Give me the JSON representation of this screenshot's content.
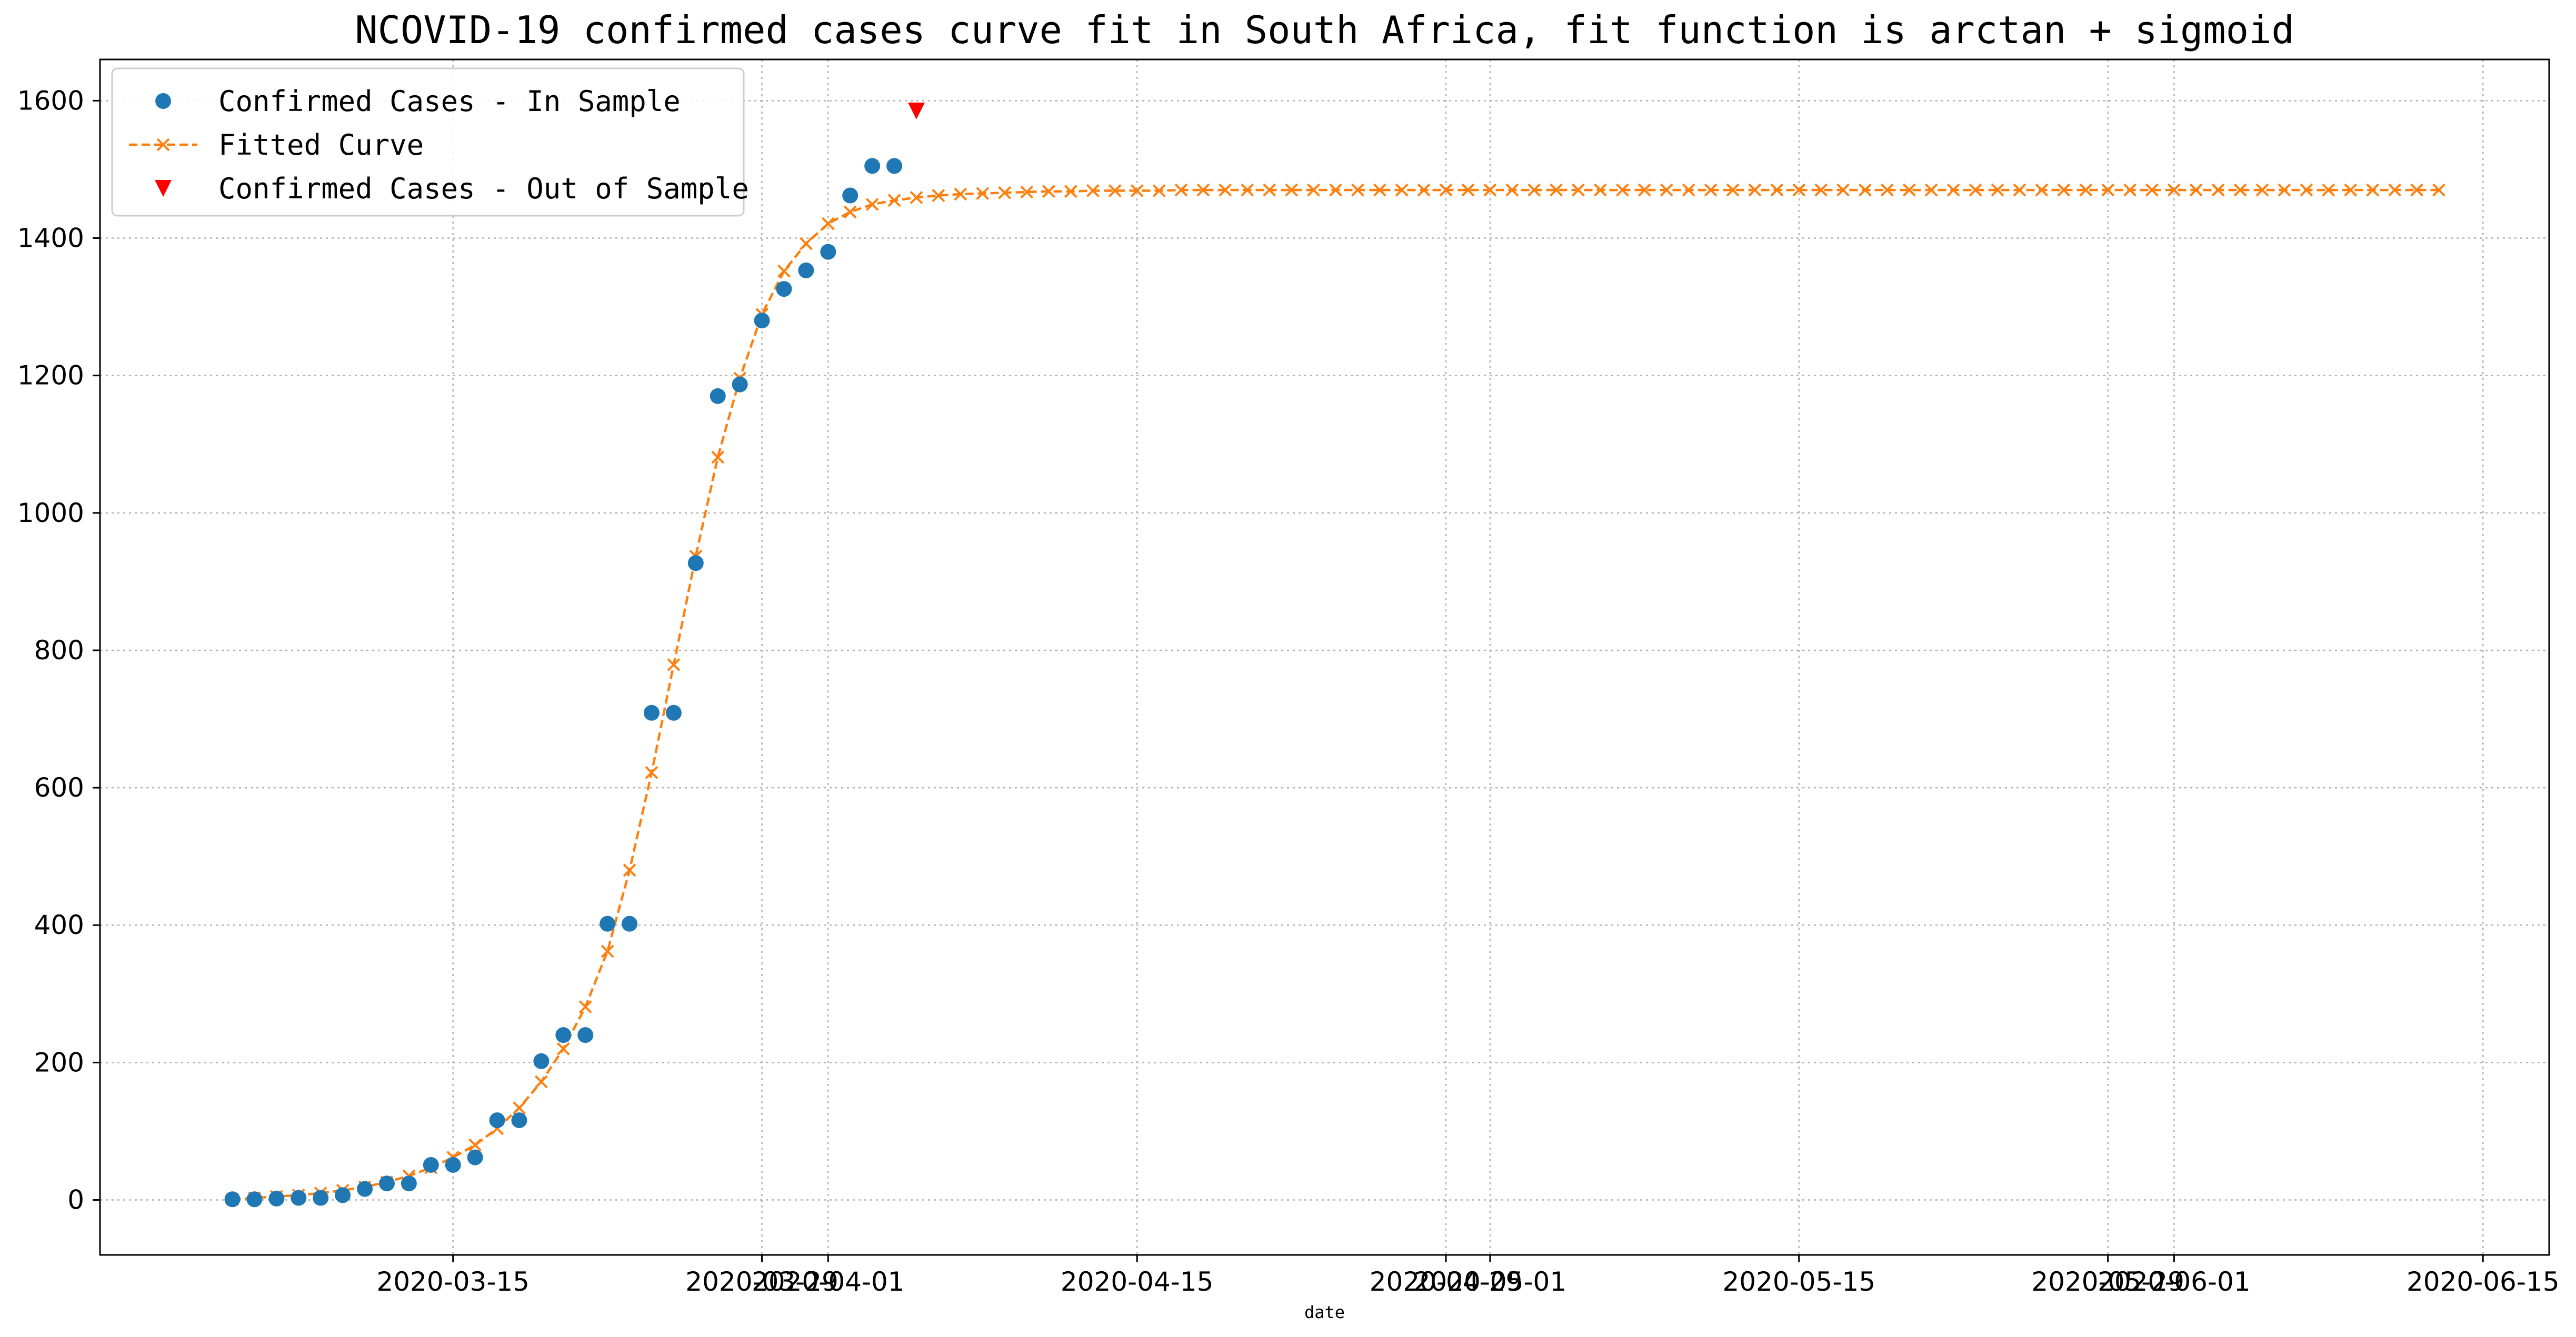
{
  "chart_data": {
    "type": "line",
    "title": "NCOVID-19 confirmed cases curve fit in South Africa, fit function is arctan + sigmoid",
    "xlabel": "date",
    "ylabel": "",
    "x_axis_type": "date",
    "xlim": [
      "2020-02-28",
      "2020-06-18"
    ],
    "ylim": [
      -80,
      1660
    ],
    "yticks": [
      0,
      200,
      400,
      600,
      800,
      1000,
      1200,
      1400,
      1600
    ],
    "xticks": [
      "2020-03-15",
      "2020-03-29",
      "2020-04-01",
      "2020-04-15",
      "2020-04-29",
      "2020-05-01",
      "2020-05-15",
      "2020-05-29",
      "2020-06-01",
      "2020-06-15"
    ],
    "grid": true,
    "legend_position": "top-left",
    "colors": {
      "in_sample": "#1f77b4",
      "fitted": "#ff7f0e",
      "out_sample": "#ff0000"
    },
    "series": [
      {
        "name": "Confirmed Cases - In Sample",
        "type": "scatter",
        "marker": "circle",
        "x": [
          "2020-03-05",
          "2020-03-06",
          "2020-03-07",
          "2020-03-08",
          "2020-03-09",
          "2020-03-10",
          "2020-03-11",
          "2020-03-12",
          "2020-03-13",
          "2020-03-14",
          "2020-03-15",
          "2020-03-16",
          "2020-03-17",
          "2020-03-18",
          "2020-03-19",
          "2020-03-20",
          "2020-03-21",
          "2020-03-22",
          "2020-03-23",
          "2020-03-24",
          "2020-03-25",
          "2020-03-26",
          "2020-03-27",
          "2020-03-28",
          "2020-03-29",
          "2020-03-30",
          "2020-03-31",
          "2020-04-01",
          "2020-04-02",
          "2020-04-03",
          "2020-04-04"
        ],
        "values": [
          1,
          1,
          2,
          3,
          3,
          7,
          16,
          24,
          24,
          51,
          51,
          62,
          116,
          116,
          202,
          240,
          240,
          402,
          402,
          709,
          709,
          927,
          1170,
          1187,
          1280,
          1326,
          1353,
          1380,
          1462,
          1505,
          1505
        ]
      },
      {
        "name": "Fitted Curve",
        "type": "line",
        "marker": "x",
        "line_style": "dashed",
        "x_start": "2020-03-05",
        "x_end": "2020-06-13",
        "values": [
          1,
          3,
          5,
          7,
          10,
          14,
          19,
          26,
          35,
          47,
          62,
          80,
          104,
          134,
          172,
          220,
          281,
          362,
          480,
          622,
          779,
          937,
          1081,
          1196,
          1289,
          1352,
          1392,
          1421,
          1438,
          1449,
          1455,
          1459,
          1462,
          1464,
          1465,
          1466,
          1467,
          1468,
          1468,
          1469,
          1469,
          1469,
          1469,
          1470,
          1470,
          1470,
          1470,
          1470,
          1470,
          1470,
          1470,
          1470,
          1470,
          1470,
          1470,
          1470,
          1470,
          1470,
          1470,
          1470,
          1470,
          1470,
          1470,
          1470,
          1470,
          1470,
          1470,
          1470,
          1470,
          1470,
          1470,
          1470,
          1470,
          1470,
          1470,
          1470,
          1470,
          1470,
          1470,
          1470,
          1470,
          1470,
          1470,
          1470,
          1470,
          1470,
          1470,
          1470,
          1470,
          1470,
          1470,
          1470,
          1470,
          1470,
          1470,
          1470,
          1470,
          1470,
          1470,
          1470,
          1470
        ]
      },
      {
        "name": "Confirmed Cases - Out of Sample",
        "type": "scatter",
        "marker": "triangle-down",
        "x": [
          "2020-04-05"
        ],
        "values": [
          1585
        ]
      }
    ]
  }
}
